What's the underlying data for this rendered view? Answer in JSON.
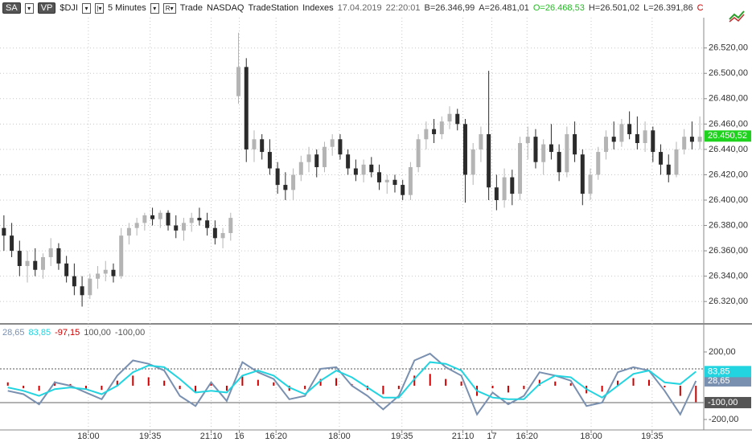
{
  "toolbar": {
    "symbol_box": "SA",
    "vp_box": "VP",
    "symbol": "$DJI",
    "interval": "5 Minutes",
    "items": [
      "Trade",
      "NASDAQ",
      "TradeStation",
      "Indexes",
      "17.04.2019",
      "22:20:01"
    ],
    "quotes": [
      {
        "text": "B=26.346,99",
        "color": "#333333"
      },
      {
        "text": "A=26.481,01",
        "color": "#333333"
      },
      {
        "text": "O=26.468,53",
        "color": "#22bb22"
      },
      {
        "text": "H=26.501,02",
        "color": "#333333"
      },
      {
        "text": "L=26.391,86",
        "color": "#333333"
      },
      {
        "text": "C",
        "color": "#cc0000"
      }
    ]
  },
  "chart_data": [
    {
      "type": "candlestick",
      "up_color": "#b4b4b4",
      "down_color": "#2b2b2b",
      "grid": true,
      "ylim": [
        26303,
        26542
      ],
      "yticks": [
        {
          "value": 26320,
          "label": "26.320,00"
        },
        {
          "value": 26340,
          "label": "26.340,00"
        },
        {
          "value": 26360,
          "label": "26.360,00"
        },
        {
          "value": 26380,
          "label": "26.380,00"
        },
        {
          "value": 26400,
          "label": "26.400,00"
        },
        {
          "value": 26420,
          "label": "26.420,00"
        },
        {
          "value": 26440,
          "label": "26.440,00"
        },
        {
          "value": 26460,
          "label": "26.460,00"
        },
        {
          "value": 26480,
          "label": "26.480,00"
        },
        {
          "value": 26500,
          "label": "26.500,00"
        },
        {
          "value": 26520,
          "label": "26.520,00"
        }
      ],
      "xlim": [
        0,
        90
      ],
      "xticks": [
        {
          "value": 10.8,
          "label": "18:00"
        },
        {
          "value": 18.7,
          "label": "19:35"
        },
        {
          "value": 26.5,
          "label": "21:10"
        },
        {
          "value": 30.1,
          "label": "16"
        },
        {
          "value": 34.8,
          "label": "16:20"
        },
        {
          "value": 42.9,
          "label": "18:00"
        },
        {
          "value": 50.9,
          "label": "19:35"
        },
        {
          "value": 58.7,
          "label": "21:10"
        },
        {
          "value": 62.4,
          "label": "17"
        },
        {
          "value": 66.9,
          "label": "16:20"
        },
        {
          "value": 75.1,
          "label": "18:00"
        },
        {
          "value": 82.9,
          "label": "19:35"
        }
      ],
      "last": {
        "value": 26450.52,
        "label": "26.450,52",
        "color": "#1ed21e"
      },
      "candles": [
        [
          26378,
          26388,
          26360,
          26372
        ],
        [
          26372,
          26382,
          26355,
          26360
        ],
        [
          26360,
          26368,
          26340,
          26348
        ],
        [
          26348,
          26360,
          26335,
          26352
        ],
        [
          26352,
          26362,
          26340,
          26345
        ],
        [
          26345,
          26358,
          26338,
          26355
        ],
        [
          26355,
          26370,
          26348,
          26362
        ],
        [
          26362,
          26366,
          26345,
          26350
        ],
        [
          26350,
          26356,
          26335,
          26340
        ],
        [
          26340,
          26350,
          26325,
          26332
        ],
        [
          26332,
          26340,
          26316,
          26325
        ],
        [
          26325,
          26342,
          26322,
          26338
        ],
        [
          26338,
          26348,
          26330,
          26342
        ],
        [
          26342,
          26352,
          26336,
          26345
        ],
        [
          26345,
          26350,
          26335,
          26340
        ],
        [
          26340,
          26378,
          26338,
          26372
        ],
        [
          26372,
          26382,
          26365,
          26378
        ],
        [
          26378,
          26386,
          26372,
          26382
        ],
        [
          26382,
          26390,
          26376,
          26388
        ],
        [
          26388,
          26394,
          26380,
          26385
        ],
        [
          26385,
          26392,
          26378,
          26390
        ],
        [
          26390,
          26392,
          26376,
          26380
        ],
        [
          26380,
          26388,
          26370,
          26376
        ],
        [
          26376,
          26386,
          26368,
          26382
        ],
        [
          26382,
          26390,
          26375,
          26386
        ],
        [
          26386,
          26394,
          26380,
          26384
        ],
        [
          26384,
          26390,
          26372,
          26378
        ],
        [
          26378,
          26384,
          26365,
          26370
        ],
        [
          26370,
          26378,
          26362,
          26374
        ],
        [
          26374,
          26390,
          26368,
          26386
        ],
        [
          26482,
          26532,
          26476,
          26505
        ],
        [
          26505,
          26512,
          26430,
          26440
        ],
        [
          26440,
          26455,
          26430,
          26448
        ],
        [
          26448,
          26452,
          26432,
          26438
        ],
        [
          26438,
          26448,
          26420,
          26425
        ],
        [
          26425,
          26430,
          26405,
          26412
        ],
        [
          26412,
          26422,
          26400,
          26408
        ],
        [
          26408,
          26425,
          26400,
          26420
        ],
        [
          26420,
          26435,
          26415,
          26430
        ],
        [
          26430,
          26442,
          26422,
          26436
        ],
        [
          26436,
          26440,
          26418,
          26426
        ],
        [
          26426,
          26446,
          26422,
          26442
        ],
        [
          26442,
          26452,
          26435,
          26448
        ],
        [
          26448,
          26452,
          26432,
          26436
        ],
        [
          26436,
          26440,
          26420,
          26425
        ],
        [
          26425,
          26432,
          26415,
          26420
        ],
        [
          26420,
          26432,
          26414,
          26428
        ],
        [
          26428,
          26434,
          26418,
          26422
        ],
        [
          26422,
          26428,
          26408,
          26414
        ],
        [
          26414,
          26420,
          26405,
          26416
        ],
        [
          26416,
          26420,
          26406,
          26412
        ],
        [
          26412,
          26416,
          26400,
          26404
        ],
        [
          26404,
          26430,
          26400,
          26426
        ],
        [
          26426,
          26452,
          26422,
          26448
        ],
        [
          26448,
          26462,
          26440,
          26456
        ],
        [
          26456,
          26464,
          26445,
          26452
        ],
        [
          26452,
          26466,
          26448,
          26462
        ],
        [
          26462,
          26474,
          26456,
          26468
        ],
        [
          26468,
          26472,
          26455,
          26460
        ],
        [
          26460,
          26464,
          26398,
          26420
        ],
        [
          26420,
          26445,
          26412,
          26440
        ],
        [
          26440,
          26458,
          26430,
          26452
        ],
        [
          26452,
          26502,
          26400,
          26410
        ],
        [
          26410,
          26420,
          26392,
          26400
        ],
        [
          26400,
          26425,
          26394,
          26418
        ],
        [
          26418,
          26424,
          26396,
          26405
        ],
        [
          26405,
          26450,
          26400,
          26445
        ],
        [
          26445,
          26458,
          26432,
          26450
        ],
        [
          26450,
          26456,
          26425,
          26430
        ],
        [
          26430,
          26448,
          26420,
          26444
        ],
        [
          26444,
          26460,
          26432,
          26438
        ],
        [
          26438,
          26444,
          26415,
          26422
        ],
        [
          26422,
          26458,
          26418,
          26452
        ],
        [
          26452,
          26462,
          26430,
          26436
        ],
        [
          26436,
          26440,
          26396,
          26405
        ],
        [
          26405,
          26425,
          26400,
          26420
        ],
        [
          26420,
          26442,
          26416,
          26438
        ],
        [
          26438,
          26455,
          26432,
          26450
        ],
        [
          26450,
          26462,
          26440,
          26446
        ],
        [
          26446,
          26464,
          26442,
          26460
        ],
        [
          26460,
          26470,
          26448,
          26452
        ],
        [
          26452,
          26466,
          26440,
          26445
        ],
        [
          26445,
          26462,
          26438,
          26455
        ],
        [
          26455,
          26458,
          26430,
          26438
        ],
        [
          26438,
          26444,
          26420,
          26428
        ],
        [
          26428,
          26436,
          26414,
          26420
        ],
        [
          26420,
          26446,
          26418,
          26440
        ],
        [
          26440,
          26456,
          26436,
          26450
        ],
        [
          26450,
          26462,
          26440,
          26446
        ],
        [
          26446,
          26466,
          26440,
          26450
        ]
      ]
    },
    {
      "type": "indicator",
      "ylim": [
        -262,
        357
      ],
      "yticks": [
        {
          "value": 200,
          "label": "200,00"
        },
        {
          "value": -200,
          "label": "-200,00"
        }
      ],
      "levels": [
        {
          "value": 100,
          "label": "100,00",
          "style": "dashed",
          "color": "#555555"
        },
        {
          "value": -100,
          "label": "-100,00",
          "style": "solid",
          "color": "#666666",
          "tag_color": "#555555"
        }
      ],
      "series": [
        {
          "name": "28,65",
          "color": "#7a90b0",
          "tag_color": "#7a90b0",
          "values": [
            -30,
            -50,
            -110,
            20,
            0,
            -40,
            -80,
            60,
            150,
            130,
            90,
            -60,
            -120,
            20,
            -90,
            140,
            80,
            40,
            -80,
            -60,
            100,
            110,
            0,
            -60,
            -140,
            -60,
            150,
            190,
            110,
            60,
            -170,
            -40,
            -110,
            -60,
            80,
            60,
            30,
            -120,
            -100,
            80,
            110,
            90,
            -30,
            -170,
            28.65
          ]
        },
        {
          "name": "83,85",
          "color": "#22d4e0",
          "tag_color": "#22d4e0",
          "values": [
            -10,
            -30,
            -60,
            -20,
            -10,
            -20,
            -50,
            0,
            80,
            120,
            110,
            40,
            -40,
            -30,
            -40,
            60,
            90,
            60,
            -10,
            -50,
            30,
            90,
            50,
            -10,
            -70,
            -70,
            40,
            140,
            130,
            90,
            -30,
            -70,
            -80,
            -80,
            10,
            60,
            50,
            -20,
            -70,
            0,
            70,
            90,
            20,
            10,
            83.85
          ]
        }
      ],
      "histogram": {
        "name": "-97,15",
        "color": "#cc0000",
        "values": [
          20,
          -15,
          -30,
          25,
          10,
          -20,
          -25,
          30,
          60,
          50,
          30,
          -20,
          -40,
          15,
          -30,
          55,
          35,
          20,
          -30,
          -20,
          40,
          45,
          10,
          -25,
          -50,
          -20,
          60,
          70,
          40,
          25,
          -60,
          -15,
          -40,
          -20,
          35,
          25,
          15,
          -45,
          -35,
          30,
          45,
          35,
          -10,
          -60,
          -97.15
        ]
      }
    }
  ]
}
